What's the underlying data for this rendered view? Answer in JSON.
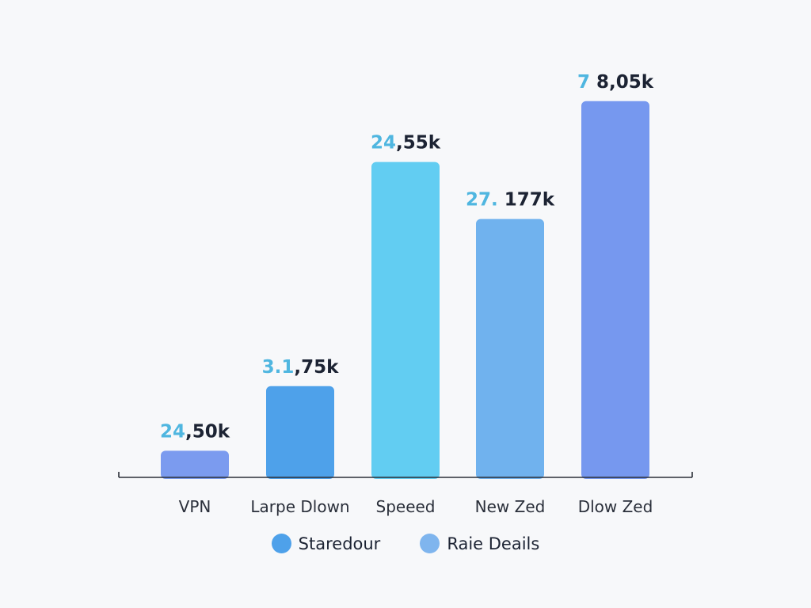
{
  "chart_data": {
    "type": "bar",
    "categories": [
      "VPN",
      "Larpe Dlown",
      "Speeed",
      "New Zed",
      "Dlow Zed"
    ],
    "values": [
      24.5,
      31.75,
      24.55,
      27.177,
      78.05
    ],
    "bar_heights_relative": [
      0.07,
      0.24,
      0.83,
      0.68,
      0.99
    ],
    "data_labels": [
      {
        "prefix": "24",
        "rest": ",50k"
      },
      {
        "prefix": "3.1",
        "rest": ",75k"
      },
      {
        "prefix": "24",
        "rest": ",55k"
      },
      {
        "prefix": "27.",
        "rest": " 177k"
      },
      {
        "prefix": "7",
        "rest": " 8,05k"
      }
    ],
    "bar_colors": [
      "#7b9bef",
      "#4ea1ea",
      "#62cdf2",
      "#70b2ee",
      "#7698ef"
    ],
    "legend": [
      {
        "label": "Staredour",
        "color": "#4ea1ea"
      },
      {
        "label": "Raie Deails",
        "color": "#7fb5ee"
      }
    ],
    "legend_position": "bottom",
    "grid": false,
    "title": "",
    "xlabel": "",
    "ylabel": ""
  }
}
